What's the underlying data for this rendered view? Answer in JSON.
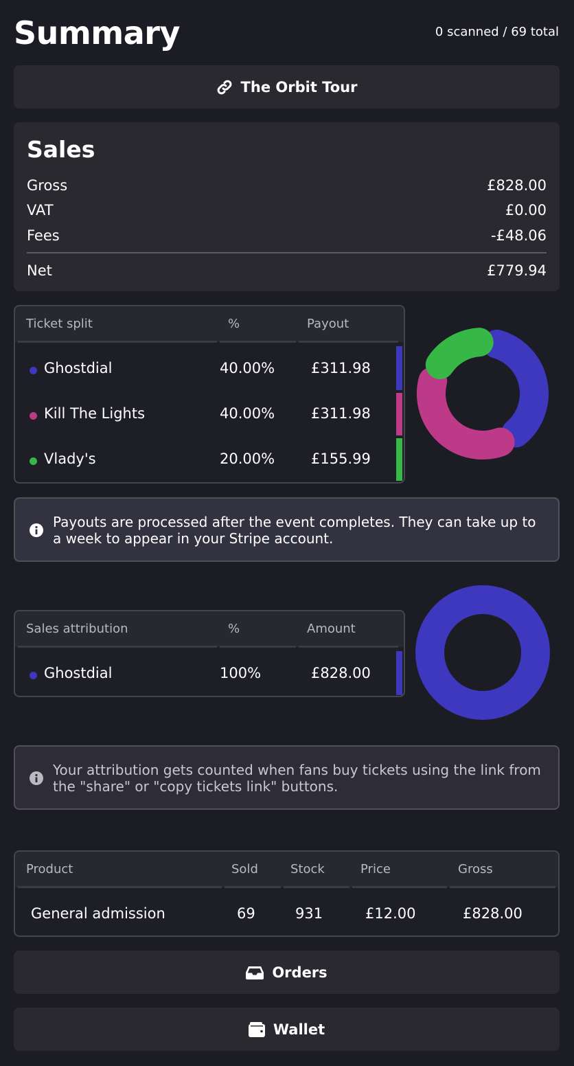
{
  "header": {
    "title": "Summary",
    "scan_status": "0 scanned / 69 total"
  },
  "event_button": {
    "label": "The Orbit Tour",
    "icon": "link-icon"
  },
  "sales": {
    "title": "Sales",
    "rows": [
      {
        "label": "Gross",
        "value": "£828.00"
      },
      {
        "label": "VAT",
        "value": "£0.00"
      },
      {
        "label": "Fees",
        "value": "-£48.06"
      }
    ],
    "net": {
      "label": "Net",
      "value": "£779.94"
    }
  },
  "ticket_split": {
    "headers": [
      "Ticket split",
      "%",
      "Payout"
    ],
    "rows": [
      {
        "name": "Ghostdial",
        "percent": "40.00%",
        "payout": "£311.98",
        "color": "#3d38bd",
        "share": 40
      },
      {
        "name": "Kill The Lights",
        "percent": "40.00%",
        "payout": "£311.98",
        "color": "#bc3a88",
        "share": 40
      },
      {
        "name": "Vlady's",
        "percent": "20.00%",
        "payout": "£155.99",
        "color": "#37b745",
        "share": 20
      }
    ]
  },
  "payout_info": {
    "icon": "info-icon",
    "text": "Payouts are processed after the event completes. They can take up to a week to appear in your Stripe account."
  },
  "sales_attribution": {
    "headers": [
      "Sales attribution",
      "%",
      "Amount"
    ],
    "rows": [
      {
        "name": "Ghostdial",
        "percent": "100%",
        "amount": "£828.00",
        "color": "#3d38bd",
        "share": 100
      }
    ]
  },
  "attribution_info": {
    "icon": "info-icon",
    "text": "Your attribution gets counted when fans buy tickets using the link from the \"share\" or \"copy tickets link\" buttons."
  },
  "products": {
    "headers": [
      "Product",
      "Sold",
      "Stock",
      "Price",
      "Gross"
    ],
    "rows": [
      {
        "product": "General admission",
        "sold": "69",
        "stock": "931",
        "price": "£12.00",
        "gross": "£828.00"
      }
    ]
  },
  "orders_button": {
    "label": "Orders",
    "icon": "inbox-icon"
  },
  "wallet_button": {
    "label": "Wallet",
    "icon": "wallet-icon"
  }
}
